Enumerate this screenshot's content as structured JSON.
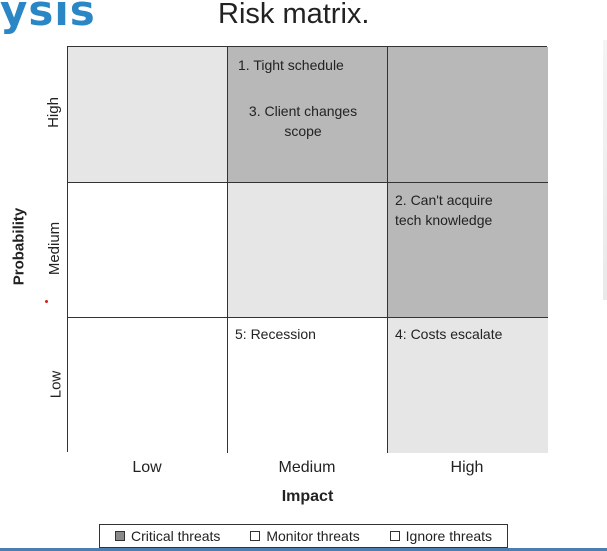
{
  "banner": {
    "word": "ysis"
  },
  "title": "Risk matrix.",
  "axes": {
    "x_title": "Impact",
    "y_title": "Probability",
    "x_levels": [
      "Low",
      "Medium",
      "High"
    ],
    "y_levels_top_to_bottom": [
      "High",
      "Medium",
      "Low"
    ]
  },
  "cells": {
    "high_low": {
      "risks": []
    },
    "high_medium": {
      "risks": [
        "1. Tight schedule",
        "3. Client changes\nscope"
      ]
    },
    "high_high": {
      "risks": []
    },
    "medium_low": {
      "risks": []
    },
    "medium_medium": {
      "risks": []
    },
    "medium_high": {
      "risks": [
        "2. Can't acquire\ntech knowledge"
      ]
    },
    "low_low": {
      "risks": []
    },
    "low_medium": {
      "risks": [
        "5: Recession"
      ]
    },
    "low_high": {
      "risks": [
        "4: Costs escalate"
      ]
    }
  },
  "legend": {
    "critical": "Critical threats",
    "monitor": "Monitor threats",
    "ignore": "Ignore threats"
  },
  "colors": {
    "critical": "#b8b8b8",
    "monitor": "#e6e6e6",
    "ignore": "#ffffff",
    "banner": "#2b86c5"
  }
}
